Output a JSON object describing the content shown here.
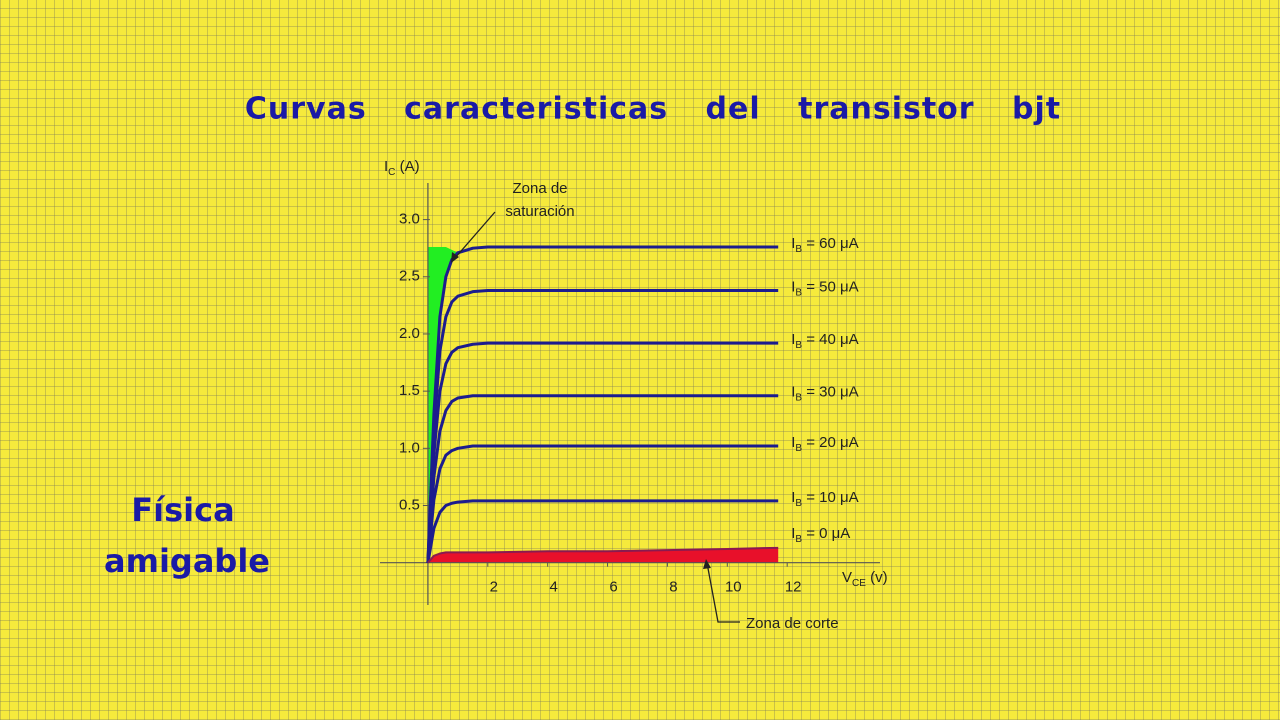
{
  "chart_data": {
    "type": "line",
    "title": "Curvas caracteristicas del transistor bjt",
    "y_label": "IC (A)",
    "x_label": "VCE (v)",
    "xlim": [
      -1.6,
      15.1
    ],
    "ylim": [
      -0.37,
      3.32
    ],
    "xticks": [
      2,
      4,
      6,
      8,
      10,
      12
    ],
    "yticks": [
      {
        "value": 0.5,
        "label": "0.5"
      },
      {
        "value": 1,
        "label": "1.0"
      },
      {
        "value": 1.5,
        "label": "1.5"
      },
      {
        "value": 2,
        "label": "2.0"
      },
      {
        "value": 2.5,
        "label": "2.5"
      },
      {
        "value": 3,
        "label": "3.0"
      }
    ],
    "x": [
      0,
      0.2,
      0.4,
      0.6,
      0.8,
      1,
      1.5,
      2,
      4,
      6,
      8,
      10,
      11.7
    ],
    "series": [
      {
        "name": "IB = 60 μA",
        "color": "#1c1c8e",
        "values": [
          0,
          1.3,
          2.15,
          2.5,
          2.65,
          2.71,
          2.75,
          2.76,
          2.76,
          2.76,
          2.76,
          2.76,
          2.76
        ]
      },
      {
        "name": "IB = 50 μA",
        "color": "#1c1c8e",
        "values": [
          0,
          1.15,
          1.85,
          2.15,
          2.28,
          2.33,
          2.37,
          2.38,
          2.38,
          2.38,
          2.38,
          2.38,
          2.38
        ]
      },
      {
        "name": "IB = 40 μA",
        "color": "#1c1c8e",
        "values": [
          0,
          0.95,
          1.5,
          1.74,
          1.84,
          1.88,
          1.91,
          1.92,
          1.92,
          1.92,
          1.92,
          1.92,
          1.92
        ]
      },
      {
        "name": "IB = 30 μA",
        "color": "#1c1c8e",
        "values": [
          0,
          0.75,
          1.15,
          1.33,
          1.41,
          1.44,
          1.46,
          1.46,
          1.46,
          1.46,
          1.46,
          1.46,
          1.46
        ]
      },
      {
        "name": "IB = 20 μA",
        "color": "#1c1c8e",
        "values": [
          0,
          0.55,
          0.82,
          0.94,
          0.98,
          1.0,
          1.02,
          1.02,
          1.02,
          1.02,
          1.02,
          1.02,
          1.02
        ]
      },
      {
        "name": "IB = 10 μA",
        "color": "#1c1c8e",
        "values": [
          0,
          0.3,
          0.44,
          0.5,
          0.52,
          0.53,
          0.54,
          0.54,
          0.54,
          0.54,
          0.54,
          0.54,
          0.54
        ]
      },
      {
        "name": "IB = 0 μA",
        "color": "#e8102a",
        "values": [
          0,
          0.06,
          0.08,
          0.09,
          0.09,
          0.09,
          0.09,
          0.09,
          0.1,
          0.1,
          0.11,
          0.12,
          0.13
        ]
      }
    ],
    "saturation_color": "#22ee22",
    "annotations": [
      {
        "lines": [
          "Zona de",
          "saturación"
        ]
      },
      {
        "lines": [
          "Zona de corte"
        ]
      }
    ]
  },
  "branding": {
    "lines": [
      "Física",
      "amigable"
    ]
  }
}
